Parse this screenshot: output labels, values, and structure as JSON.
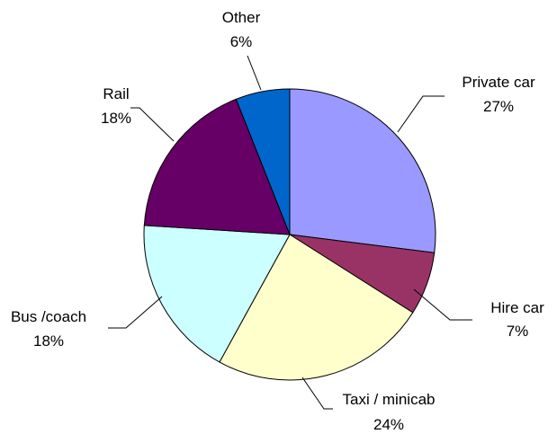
{
  "chart_data": {
    "type": "pie",
    "title": "",
    "start_angle_deg": 0,
    "direction": "clockwise",
    "slices": [
      {
        "label": "Private car",
        "value": 27,
        "value_label": "27%",
        "color": "#9999ff"
      },
      {
        "label": "Hire car",
        "value": 7,
        "value_label": "7%",
        "color": "#993366"
      },
      {
        "label": "Taxi / minicab",
        "value": 24,
        "value_label": "24%",
        "color": "#ffffcc"
      },
      {
        "label": "Bus /coach",
        "value": 18,
        "value_label": "18%",
        "color": "#ccffff"
      },
      {
        "label": "Rail",
        "value": 18,
        "value_label": "18%",
        "color": "#660066"
      },
      {
        "label": "Other",
        "value": 6,
        "value_label": "6%",
        "color": "#0066cc"
      }
    ],
    "slice_outline_color": "#000000",
    "leader_line_color": "#000000",
    "legend": "none"
  }
}
